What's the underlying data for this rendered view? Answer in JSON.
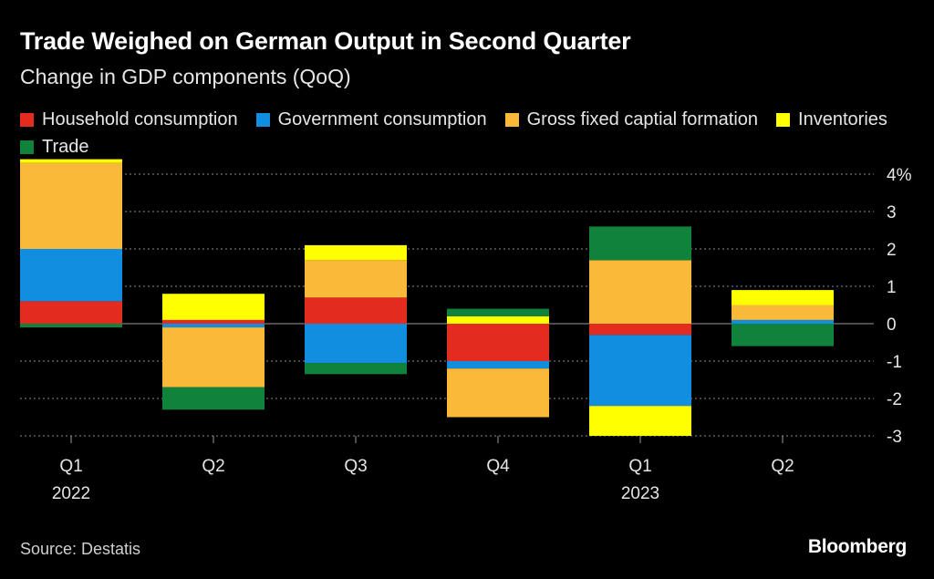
{
  "title": "Trade Weighed on German Output in Second Quarter",
  "subtitle": "Change in GDP components (QoQ)",
  "source": "Source: Destatis",
  "brand": "Bloomberg",
  "chart_data": {
    "type": "bar",
    "stacked": true,
    "title": "Trade Weighed on German Output in Second Quarter",
    "subtitle": "Change in GDP components (QoQ)",
    "categories": [
      "Q1 2022",
      "Q2 2022",
      "Q3 2022",
      "Q4 2022",
      "Q1 2023",
      "Q2 2023"
    ],
    "x_tick_labels": [
      {
        "top": "Q1",
        "bottom": "2022"
      },
      {
        "top": "Q2",
        "bottom": ""
      },
      {
        "top": "Q3",
        "bottom": ""
      },
      {
        "top": "Q4",
        "bottom": ""
      },
      {
        "top": "Q1",
        "bottom": "2023"
      },
      {
        "top": "Q2",
        "bottom": ""
      }
    ],
    "y_ticks": [
      {
        "value": 4,
        "label": "4%"
      },
      {
        "value": 3,
        "label": "3"
      },
      {
        "value": 2,
        "label": "2"
      },
      {
        "value": 1,
        "label": "1"
      },
      {
        "value": 0,
        "label": "0"
      },
      {
        "value": -1,
        "label": "-1"
      },
      {
        "value": -2,
        "label": "-2"
      },
      {
        "value": -3,
        "label": "-3"
      }
    ],
    "ylim": [
      -3,
      4.3
    ],
    "grid": true,
    "legend_position": "top",
    "series": [
      {
        "name": "Household consumption",
        "color": "#e32b20",
        "values": [
          0.6,
          0.1,
          0.7,
          -1.0,
          -0.3,
          0.0
        ]
      },
      {
        "name": "Government consumption",
        "color": "#118ee0",
        "values": [
          1.4,
          -0.1,
          -1.05,
          -0.2,
          -1.9,
          0.1
        ]
      },
      {
        "name": "Gross fixed captial formation",
        "color": "#fbb939",
        "values": [
          2.3,
          -1.6,
          1.0,
          -1.3,
          1.7,
          0.4
        ]
      },
      {
        "name": "Inventories",
        "color": "#ffff00",
        "values": [
          0.1,
          0.7,
          0.4,
          0.2,
          -0.8,
          0.4
        ]
      },
      {
        "name": "Trade",
        "color": "#11823b",
        "values": [
          -0.1,
          -0.6,
          -0.3,
          0.2,
          0.9,
          -0.6
        ]
      }
    ]
  }
}
